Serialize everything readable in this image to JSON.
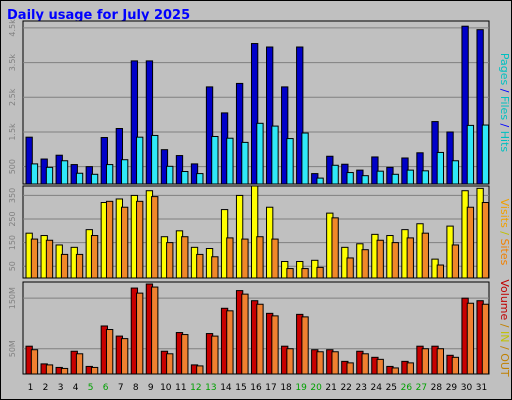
{
  "chart_data": {
    "type": "bar",
    "title": "Daily usage for July 2025",
    "categories": [
      "1",
      "2",
      "3",
      "4",
      "5",
      "6",
      "7",
      "8",
      "9",
      "10",
      "11",
      "12",
      "13",
      "14",
      "15",
      "16",
      "17",
      "18",
      "19",
      "20",
      "21",
      "22",
      "23",
      "24",
      "25",
      "26",
      "27",
      "28",
      "29",
      "30",
      "31"
    ],
    "weekend_days": [
      "5",
      "6",
      "12",
      "13",
      "19",
      "20",
      "26",
      "27"
    ],
    "panels": [
      {
        "id": "hits",
        "right_label": "Pages / Files / Hits",
        "label_colors": [
          "#00c0c0",
          "#0000ff",
          "#00c0c0",
          "#0000ff",
          "#00c0c0",
          "#00c0c0"
        ],
        "label_parts": [
          "Pages",
          " / ",
          "Files",
          " / ",
          "Hits",
          ""
        ],
        "ylim": [
          0,
          4700
        ],
        "yticks": [
          {
            "v": 500,
            "t": "500"
          },
          {
            "v": 1500,
            "t": "1.5k"
          },
          {
            "v": 2500,
            "t": "2.5k"
          },
          {
            "v": 3500,
            "t": "3.5k"
          },
          {
            "v": 4500,
            "t": "4.5k"
          }
        ],
        "series": [
          {
            "name": "Hits",
            "color": "#0000c8",
            "values": [
              1350,
              720,
              830,
              560,
              500,
              1340,
              1600,
              3550,
              3550,
              990,
              820,
              580,
              2800,
              2050,
              2900,
              4050,
              3950,
              2800,
              3950,
              300,
              800,
              570,
              400,
              780,
              480,
              750,
              900,
              1800,
              1500,
              4550,
              4450
            ]
          },
          {
            "name": "Files",
            "color": "#30e8f8",
            "values": [
              580,
              480,
              670,
              310,
              280,
              560,
              700,
              1350,
              1400,
              510,
              360,
              300,
              1370,
              1320,
              1200,
              1750,
              1670,
              1310,
              1470,
              170,
              540,
              330,
              240,
              370,
              280,
              400,
              380,
              910,
              670,
              1690,
              1700
            ]
          }
        ]
      },
      {
        "id": "visits",
        "right_label": "Visits / Sites",
        "label_colors": [
          "#f0a000",
          "#c0c000",
          "#f08000"
        ],
        "label_parts": [
          "Visits",
          " / ",
          "Sites"
        ],
        "ylim": [
          0,
          390
        ],
        "yticks": [
          {
            "v": 50,
            "t": "50"
          },
          {
            "v": 150,
            "t": "150"
          },
          {
            "v": 250,
            "t": "250"
          },
          {
            "v": 350,
            "t": "350"
          }
        ],
        "series": [
          {
            "name": "Visits",
            "color": "#ffff00",
            "values": [
              190,
              180,
              140,
              130,
              205,
              320,
              335,
              350,
              370,
              175,
              200,
              130,
              125,
              290,
              350,
              390,
              300,
              70,
              70,
              75,
              275,
              130,
              145,
              185,
              180,
              205,
              230,
              80,
              220,
              370,
              380
            ]
          },
          {
            "name": "Sites",
            "color": "#f08828",
            "values": [
              165,
              160,
              100,
              100,
              180,
              325,
              300,
              325,
              345,
              150,
              175,
              100,
              90,
              170,
              165,
              175,
              165,
              40,
              40,
              45,
              255,
              85,
              120,
              160,
              150,
              170,
              190,
              55,
              140,
              300,
              320
            ]
          }
        ]
      },
      {
        "id": "kbytes",
        "right_label": "Volume / IN / OUT",
        "label_colors": [
          "#c00000",
          "#c08000",
          "#c0c000",
          "#c08000",
          "#c08000"
        ],
        "label_parts": [
          "Volume",
          " / ",
          "IN",
          " / ",
          "OUT"
        ],
        "ylim": [
          0,
          182
        ],
        "yticks": [
          {
            "v": 50,
            "t": "50M"
          },
          {
            "v": 150,
            "t": "150M"
          }
        ],
        "series": [
          {
            "name": "KBytes",
            "color": "#c80000",
            "values": [
              55,
              20,
              13,
              45,
              15,
              95,
              75,
              170,
              178,
              45,
              82,
              18,
              80,
              130,
              165,
              145,
              120,
              55,
              118,
              48,
              48,
              25,
              45,
              33,
              15,
              25,
              55,
              55,
              37,
              150,
              145
            ]
          },
          {
            "name": "KBytesOut",
            "color": "#f08030",
            "values": [
              48,
              18,
              11,
              40,
              13,
              88,
              70,
              160,
              172,
              40,
              78,
              16,
              75,
              125,
              158,
              138,
              115,
              50,
              113,
              44,
              44,
              22,
              40,
              29,
              12,
              22,
              50,
              50,
              33,
              140,
              138
            ]
          }
        ]
      }
    ],
    "grid": true,
    "legend": "right side vertical labels"
  }
}
